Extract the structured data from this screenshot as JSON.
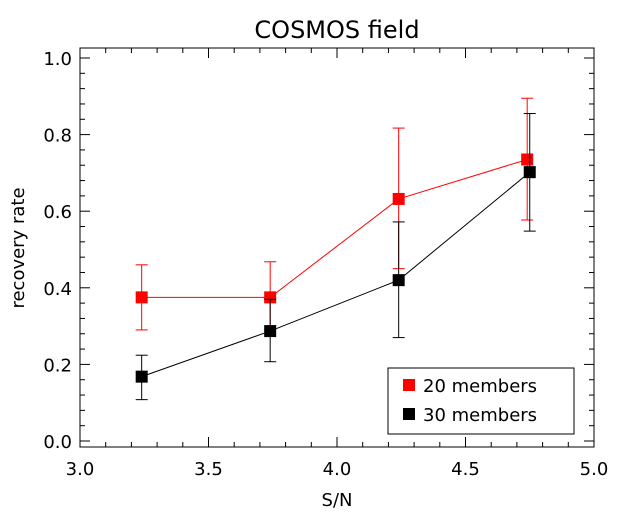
{
  "chart_data": {
    "type": "line",
    "title": "COSMOS field",
    "xlabel": "S/N",
    "ylabel": "recovery rate",
    "xlim": [
      3.0,
      5.0
    ],
    "ylim": [
      0.0,
      1.0
    ],
    "x_ticks": [
      "3.0",
      "3.5",
      "4.0",
      "4.5",
      "5.0"
    ],
    "y_ticks": [
      "0.0",
      "0.2",
      "0.4",
      "0.6",
      "0.8",
      "1.0"
    ],
    "grid": false,
    "legend_position": "bottom-right",
    "series": [
      {
        "name": "20 members",
        "color": "#ff0000",
        "x": [
          3.24,
          3.74,
          4.24,
          4.74
        ],
        "y": [
          0.375,
          0.375,
          0.632,
          0.735
        ],
        "err_low": [
          0.29,
          0.29,
          0.45,
          0.577
        ],
        "err_high": [
          0.46,
          0.468,
          0.817,
          0.895
        ]
      },
      {
        "name": "30 members",
        "color": "#000000",
        "x": [
          3.24,
          3.74,
          4.24,
          4.75
        ],
        "y": [
          0.168,
          0.287,
          0.42,
          0.702
        ],
        "err_low": [
          0.108,
          0.207,
          0.27,
          0.548
        ],
        "err_high": [
          0.224,
          0.37,
          0.572,
          0.855
        ]
      }
    ]
  }
}
